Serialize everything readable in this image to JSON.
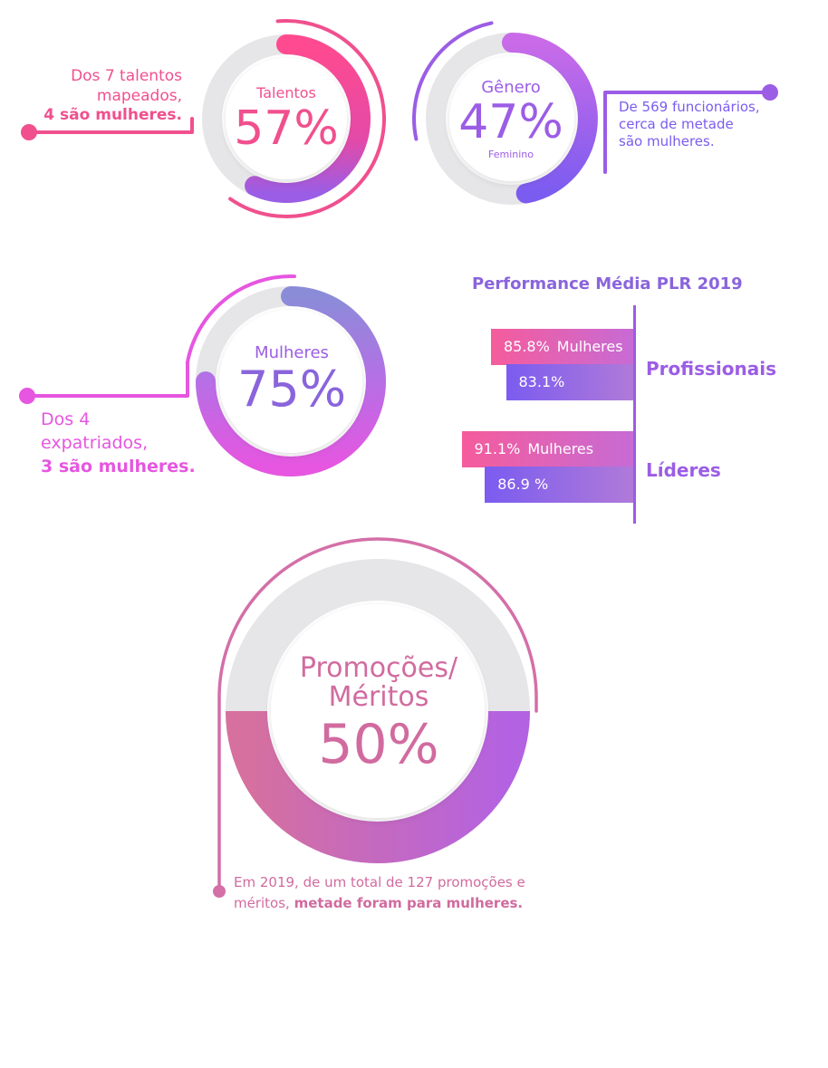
{
  "colors": {
    "pink": "#f0508e",
    "magenta": "#e656e0",
    "purple": "#9b5de5",
    "violet": "#7b5cf0",
    "mauve": "#d46fa8",
    "promo_text": "#d16b9f",
    "track": "#e6e6e8"
  },
  "talentos": {
    "label": "Talentos",
    "value": "57%",
    "percent": 57,
    "note_line1": "Dos 7 talentos",
    "note_line2": "mapeados,",
    "note_line3": "4 são mulheres."
  },
  "genero": {
    "label": "Gênero",
    "value": "47%",
    "percent": 47,
    "sublabel": "Feminino",
    "note_line1": "De 569 funcionários,",
    "note_line2": "cerca de metade",
    "note_line3": "são mulheres."
  },
  "mulheres": {
    "label": "Mulheres",
    "value": "75%",
    "percent": 75,
    "note_line1": "Dos 4",
    "note_line2": "expatriados,",
    "note_line3": "3 são mulheres."
  },
  "promocoes": {
    "label_line1": "Promoções/",
    "label_line2": "Méritos",
    "value": "50%",
    "percent": 50,
    "note_line1": "Em 2019, de um total de 127 promoções e",
    "note_line2_a": "méritos, ",
    "note_line2_b": "metade foram para mulheres."
  },
  "chart_data": {
    "type": "bar",
    "title": "Performance Média PLR 2019",
    "categories": [
      "Profissionais",
      "Líderes"
    ],
    "series": [
      {
        "name": "Mulheres",
        "values": [
          85.8,
          91.1
        ]
      },
      {
        "values": [
          83.1,
          86.9
        ]
      }
    ],
    "value_labels": [
      [
        "85.8%",
        "91.1%"
      ],
      [
        "83.1%",
        "86.9 %"
      ]
    ],
    "xlim": [
      60,
      100
    ],
    "orientation": "horizontal"
  }
}
